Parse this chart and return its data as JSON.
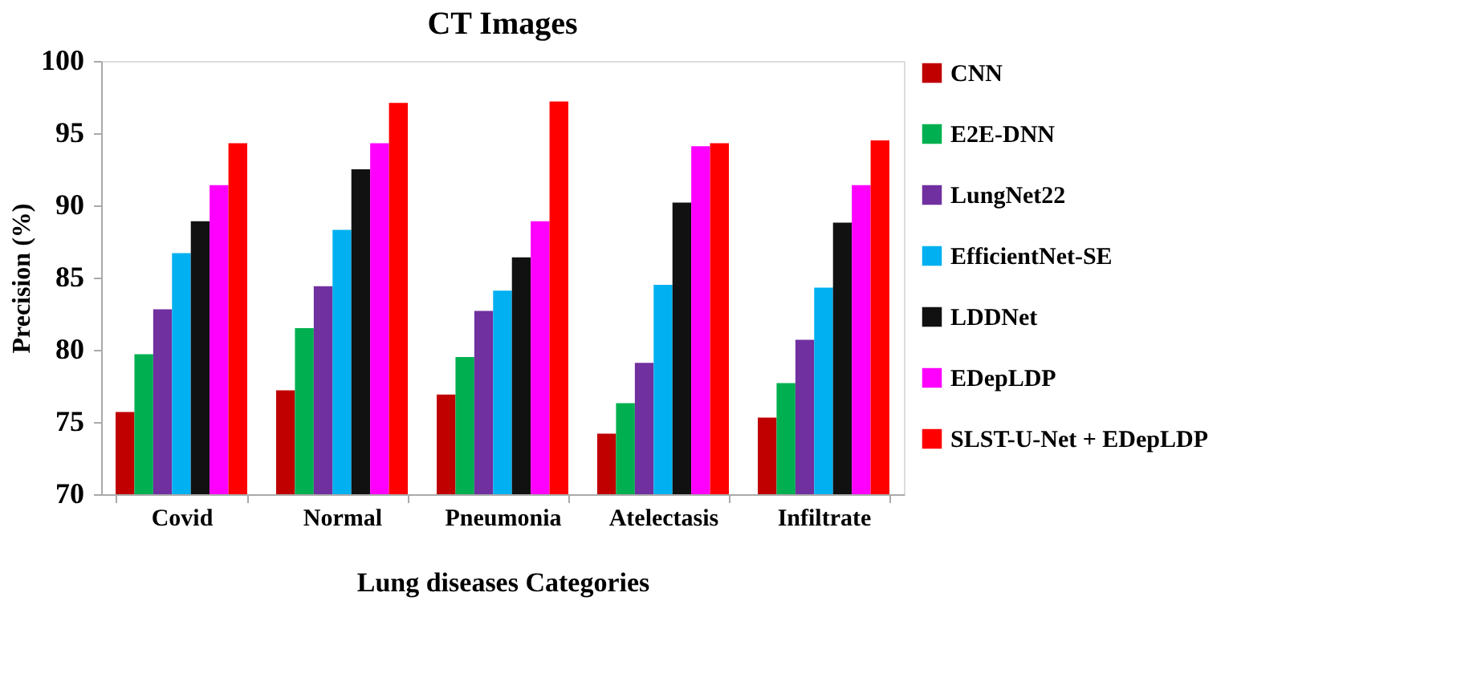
{
  "chart_data": {
    "type": "bar",
    "title": "CT Images",
    "xlabel": "Lung diseases Categories",
    "ylabel": "Precision (%)",
    "categories": [
      "Covid",
      "Normal",
      "Pneumonia",
      "Atelectasis",
      "Infiltrate"
    ],
    "series": [
      {
        "name": "CNN",
        "color": "#c00000",
        "values": [
          75.7,
          77.2,
          76.9,
          74.2,
          75.3
        ]
      },
      {
        "name": "E2E-DNN",
        "color": "#00b050",
        "values": [
          79.7,
          81.5,
          79.5,
          76.3,
          77.7
        ]
      },
      {
        "name": "LungNet22",
        "color": "#7030a0",
        "values": [
          82.8,
          84.4,
          82.7,
          79.1,
          80.7
        ]
      },
      {
        "name": "EfficientNet-SE",
        "color": "#00b0f0",
        "values": [
          86.7,
          88.3,
          84.1,
          84.5,
          84.3
        ]
      },
      {
        "name": "LDDNet",
        "color": "#111111",
        "values": [
          88.9,
          92.5,
          86.4,
          90.2,
          88.8
        ]
      },
      {
        "name": "EDepLDP",
        "color": "#ff00ff",
        "values": [
          91.4,
          94.3,
          88.9,
          94.1,
          91.4
        ]
      },
      {
        "name": "SLST-U-Net + EDepLDP",
        "color": "#ff0000",
        "values": [
          94.3,
          97.1,
          97.2,
          94.3,
          94.5
        ]
      }
    ],
    "ylim": [
      70,
      100
    ],
    "yticks": [
      70,
      75,
      80,
      85,
      90,
      95,
      100
    ],
    "grid": false,
    "legend": "right"
  }
}
